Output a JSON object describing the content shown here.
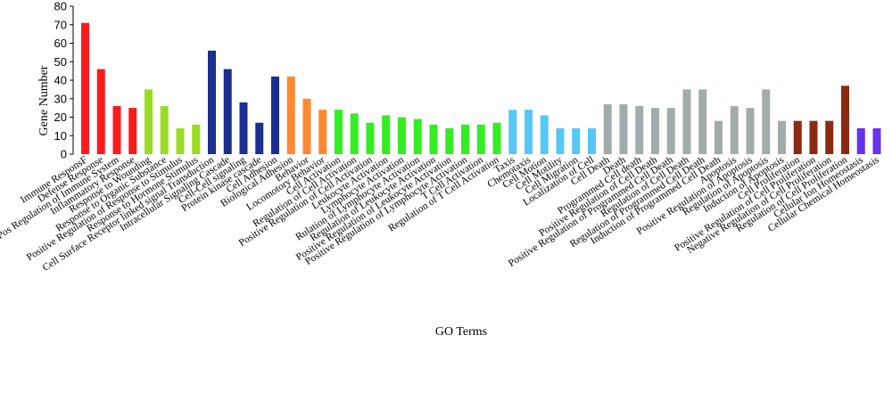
{
  "chart_data": {
    "type": "bar",
    "xlabel": "GO Terms",
    "ylabel": "Gene Number",
    "ylim": [
      0,
      80
    ],
    "yticks": [
      0,
      10,
      20,
      30,
      40,
      50,
      60,
      70,
      80
    ],
    "grid": false,
    "categories": [
      "Immune ResponsF",
      "Defense Response",
      "Pos Regulation of Immune System",
      "Inflammatory Response",
      "Response to Wounding",
      "Response to Organic Substance",
      "Positive Regulation of Response to Stimulus",
      "Response to Hormone Stimulus",
      "Cell Surface Receptor linked signal Transduction",
      "Intracellular Signaling Cascade",
      "Cell-Cell signaling",
      "Protein kinase cascade",
      "Cell Adhesion",
      "Biological Adhesion",
      "Behavior",
      "Locomotory Behavior",
      "Cell Activation",
      "Regulation of Cell Activation",
      "Positive Regulation of Cell Activation",
      "Leukocyte Activation",
      "Lymphocyte Activation",
      "Rulation of Lymphocyte Activation",
      "Regulation of Leukocyte Activation",
      "Positive Regulation of Leukocyte Activation",
      "Positive Regulation of Lymphocyte Activation",
      "T Cell Activation",
      "Regulation of T Cell Activation",
      "Taxis",
      "Chemotaxis",
      "Cell Motion",
      "Cell Motility",
      "Cell Migration",
      "Localization of Cell",
      "Cell Death",
      "Death",
      "Programmed Cell death",
      "Positive Regulation of Cell Death",
      "Positive Regulation of Programmed Cell Death",
      "Regulation of Cell Death",
      "Regulation of Programmed Cell Death",
      "Induction of Programmed Cell Death",
      "Apoptosis",
      "Positive Regulation of Apoptosis",
      "Regulation of Apoptosis",
      "Induction of Apoptosis",
      "Cell Proliferation",
      "Positive Regulation of Cell Proliferation",
      "Negative Regulation of Cell Proliferation",
      "Regulation of Cell Proliferation",
      "Cellular Ion Homeostasis",
      "Cellular Chemical Homeostasis"
    ],
    "values": [
      71,
      46,
      26,
      25,
      35,
      26,
      14,
      16,
      56,
      46,
      28,
      17,
      42,
      42,
      30,
      24,
      24,
      22,
      17,
      21,
      20,
      19,
      16,
      14,
      16,
      16,
      17,
      24,
      24,
      21,
      14,
      14,
      14,
      27,
      27,
      26,
      25,
      25,
      35,
      35,
      18,
      26,
      25,
      35,
      18,
      18,
      18,
      18,
      37,
      14,
      14
    ],
    "colors": [
      "#ff1a1a",
      "#ff1a1a",
      "#ff1a1a",
      "#ff1a1a",
      "#99dd22",
      "#99dd22",
      "#99dd22",
      "#99dd22",
      "#1a2f8f",
      "#1a2f8f",
      "#1a2f8f",
      "#1a2f8f",
      "#1a2f8f",
      "#ff8833",
      "#ff8833",
      "#ff8833",
      "#33ee22",
      "#33ee22",
      "#33ee22",
      "#33ee22",
      "#33ee22",
      "#33ee22",
      "#33ee22",
      "#33ee22",
      "#33ee22",
      "#33ee22",
      "#33ee22",
      "#55c8f5",
      "#55c8f5",
      "#55c8f5",
      "#55c8f5",
      "#55c8f5",
      "#55c8f5",
      "#a3abab",
      "#a3abab",
      "#a3abab",
      "#a3abab",
      "#a3abab",
      "#a3abab",
      "#a3abab",
      "#a3abab",
      "#a3abab",
      "#a3abab",
      "#a3abab",
      "#a3abab",
      "#8b2a12",
      "#8b2a12",
      "#8b2a12",
      "#8b2a12",
      "#6633ee",
      "#6633ee"
    ]
  }
}
